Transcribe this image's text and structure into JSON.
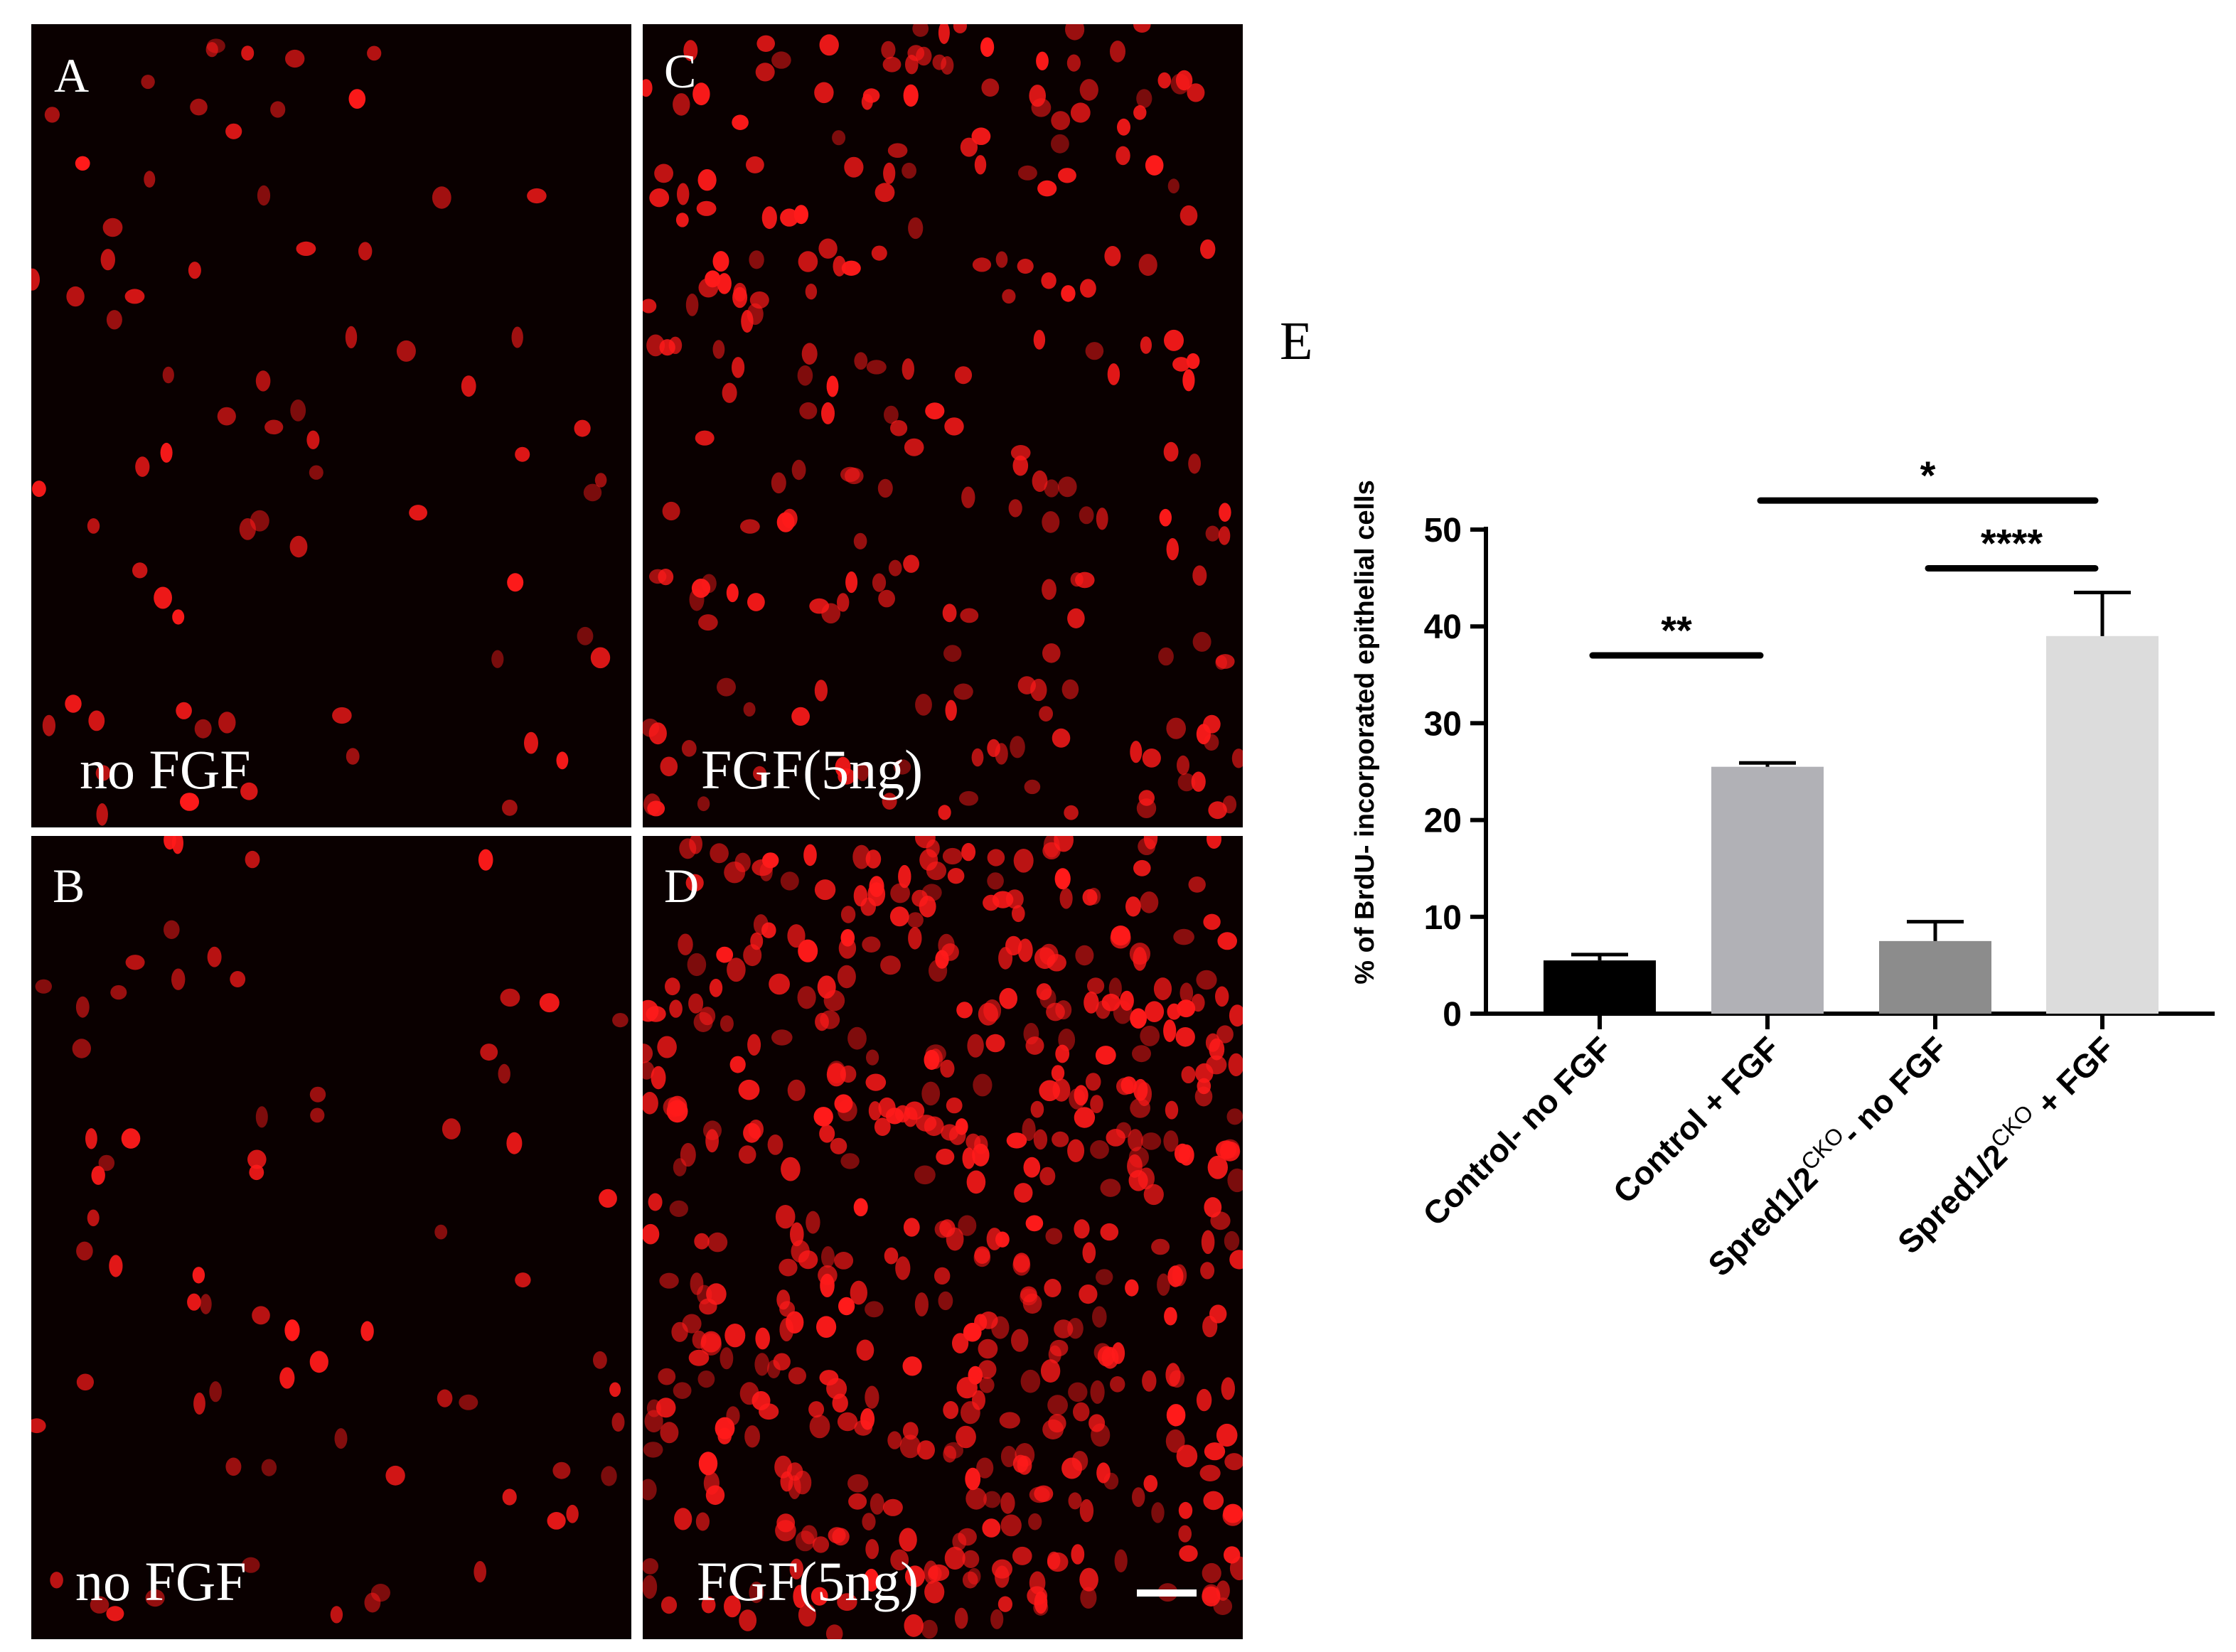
{
  "figure": {
    "panels": [
      {
        "letter": "A",
        "caption": "no FGF",
        "nuclei_density": "sparse"
      },
      {
        "letter": "B",
        "caption": "no FGF",
        "nuclei_density": "sparse"
      },
      {
        "letter": "C",
        "caption": "FGF(5ng)",
        "nuclei_density": "moderate"
      },
      {
        "letter": "D",
        "caption": "FGF(5ng)",
        "nuclei_density": "dense"
      }
    ],
    "fluorescence_color": "#ff1a1a",
    "panel_e_letter": "E"
  },
  "chart_data": {
    "type": "bar",
    "ylabel": "% of BrdU- incorporated epithelial cells",
    "xlabel": "",
    "ylim": [
      0,
      50
    ],
    "yticks": [
      0,
      10,
      20,
      30,
      40,
      50
    ],
    "categories": [
      {
        "main": "Control- no FGF",
        "sup": "",
        "suffix": ""
      },
      {
        "main": "Control + FGF",
        "sup": "",
        "suffix": ""
      },
      {
        "main": "Spred1/2",
        "sup": "CKO",
        "suffix": "- no FGF"
      },
      {
        "main": "Spred1/2",
        "sup": "CKO",
        "suffix": " + FGF"
      }
    ],
    "values": [
      5.5,
      25.5,
      7.5,
      39.0
    ],
    "errors": [
      0.6,
      0.4,
      2.0,
      4.5
    ],
    "colors": [
      "#000000",
      "#b1b1b6",
      "#8c8c8c",
      "#dcdcdc"
    ],
    "significance": [
      {
        "from": 0,
        "to": 1,
        "y": 37,
        "label": "**"
      },
      {
        "from": 2,
        "to": 3,
        "y": 46,
        "label": "****"
      },
      {
        "from": 1,
        "to": 3,
        "y": 53,
        "label": "*"
      }
    ]
  }
}
